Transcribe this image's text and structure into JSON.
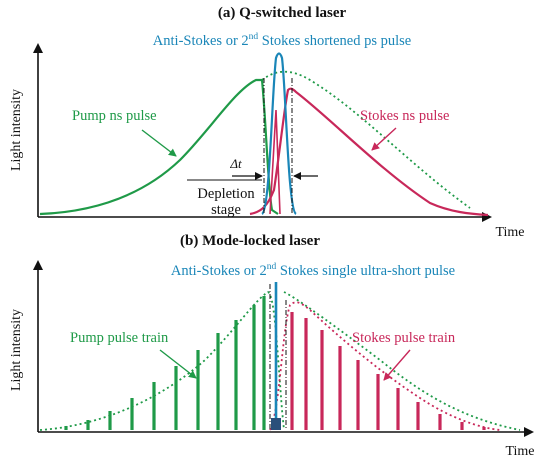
{
  "colors": {
    "pump": "#1f9a48",
    "stokes": "#c8285a",
    "anti_stokes": "#1a86b8",
    "axis": "#111111"
  },
  "panel_a": {
    "title": "(a) Q-switched laser",
    "anti_stokes_label_pre": "Anti-Stokes or 2",
    "anti_stokes_label_sup": "nd",
    "anti_stokes_label_post": " Stokes shortened ps pulse",
    "pump_label": "Pump ns pulse",
    "stokes_label": "Stokes ns pulse",
    "delta_t_label": "Δt",
    "depletion_label_line1": "Depletion",
    "depletion_label_line2": "stage",
    "ylabel": "Light intensity",
    "xlabel": "Time"
  },
  "panel_b": {
    "title": "(b) Mode-locked laser",
    "anti_stokes_label_pre": "Anti-Stokes or 2",
    "anti_stokes_label_sup": "nd",
    "anti_stokes_label_post": " Stokes single ultra-short pulse",
    "pump_label": "Pump pulse train",
    "stokes_label": "Stokes pulse train",
    "ylabel": "Light intensity",
    "xlabel": "Time"
  }
}
